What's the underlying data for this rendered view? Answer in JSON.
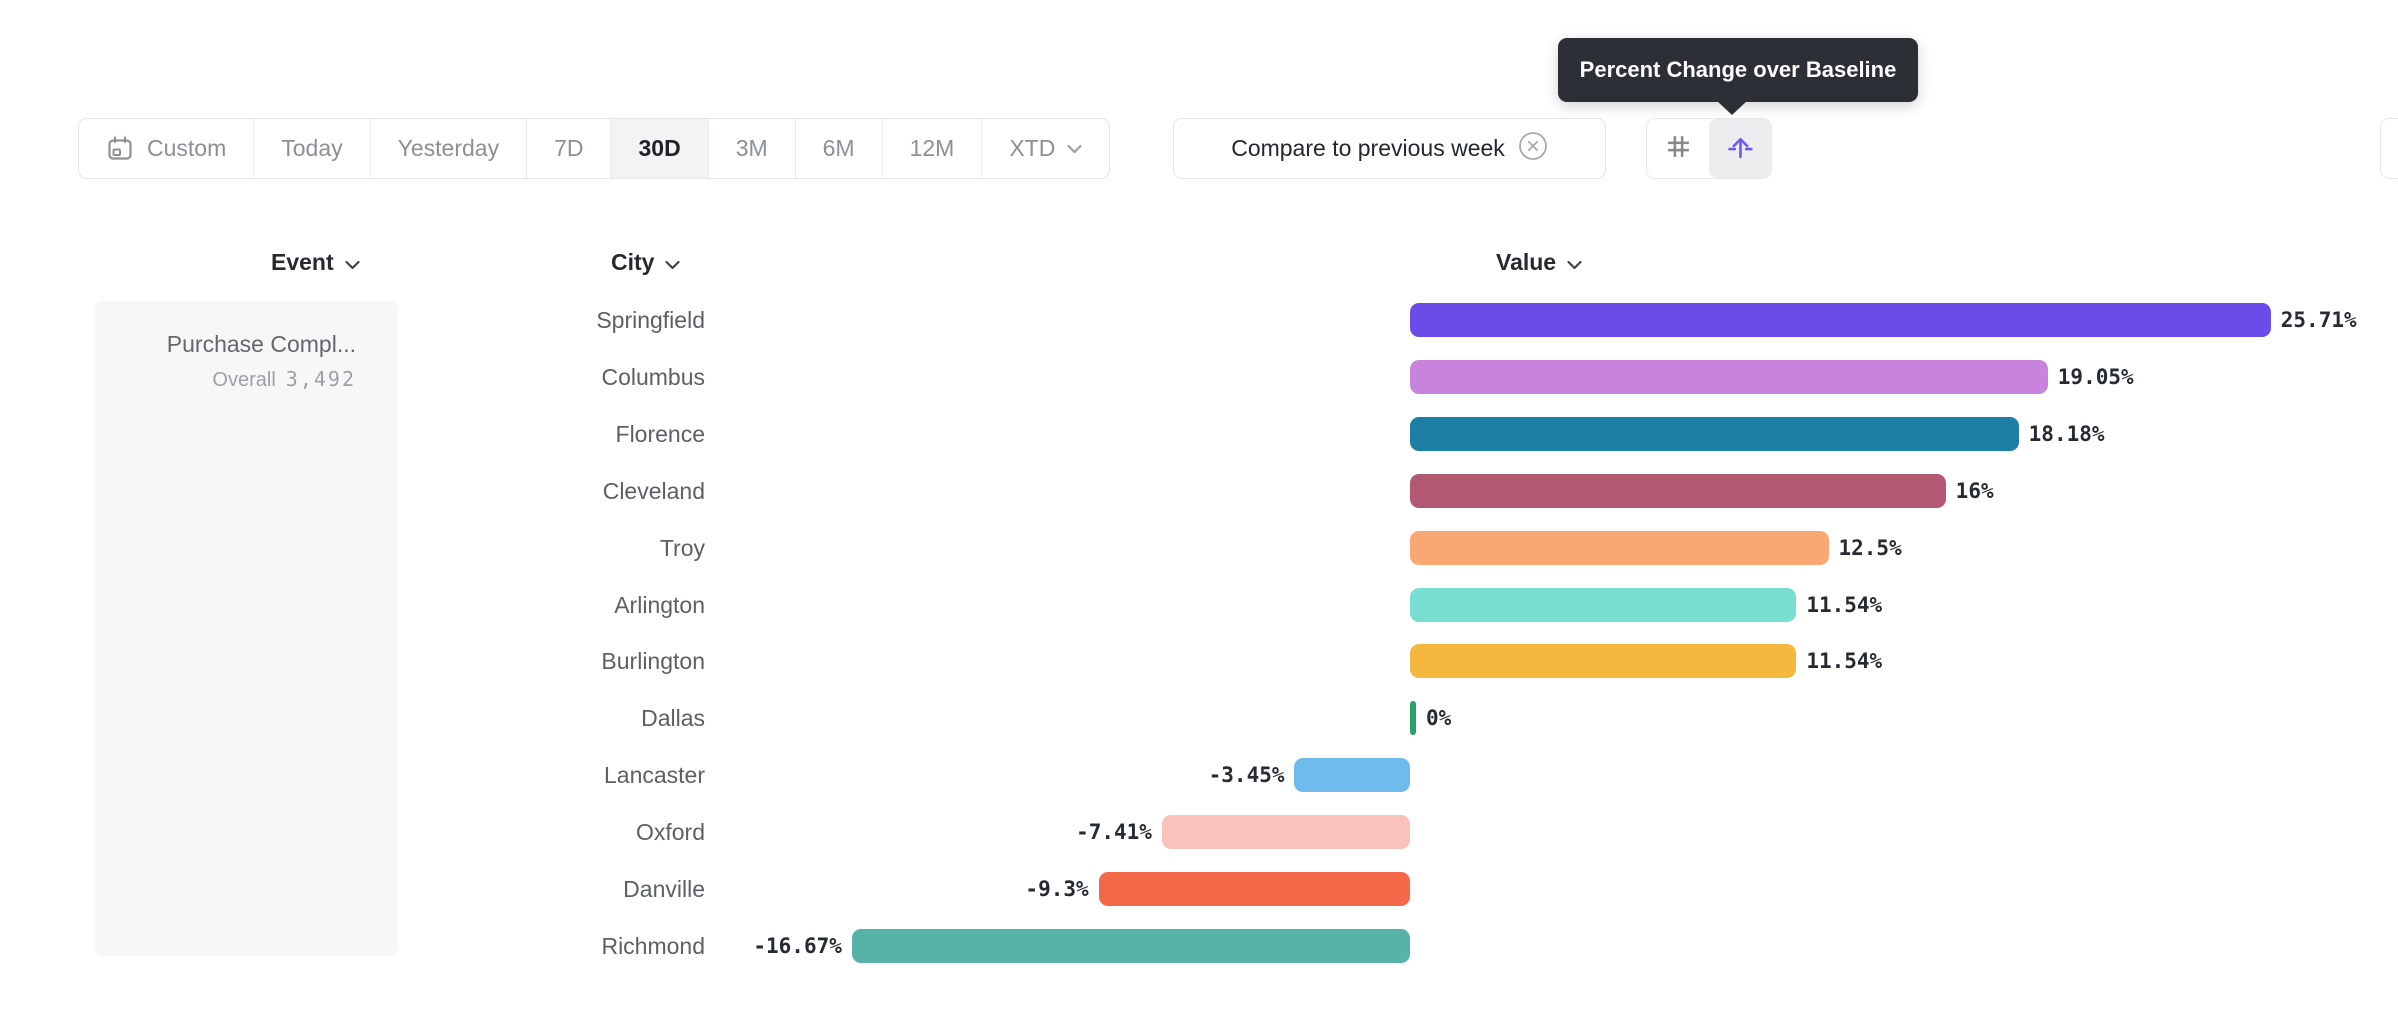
{
  "tooltip": {
    "text": "Percent Change over Baseline"
  },
  "toolbar": {
    "ranges": [
      {
        "label": "Custom",
        "selected": false,
        "icon": "calendar-icon"
      },
      {
        "label": "Today",
        "selected": false
      },
      {
        "label": "Yesterday",
        "selected": false
      },
      {
        "label": "7D",
        "selected": false
      },
      {
        "label": "30D",
        "selected": true
      },
      {
        "label": "3M",
        "selected": false
      },
      {
        "label": "6M",
        "selected": false
      },
      {
        "label": "12M",
        "selected": false
      },
      {
        "label": "XTD",
        "selected": false,
        "has_dropdown": true
      }
    ],
    "compare": {
      "label": "Compare to previous week",
      "icon": "close-circle-icon"
    },
    "view_toggle": [
      {
        "icon": "grid-icon",
        "selected": false
      },
      {
        "icon": "baseline-arrow-icon",
        "selected": true
      }
    ]
  },
  "columns": {
    "event": "Event",
    "city": "City",
    "value": "Value"
  },
  "event_panel": {
    "title": "Purchase Compl...",
    "overall_label": "Overall",
    "overall_value": "3,492"
  },
  "chart_data": {
    "type": "bar",
    "orientation": "horizontal",
    "title": "Percent Change over Baseline",
    "group_by": "City",
    "categories": [
      "Springfield",
      "Columbus",
      "Florence",
      "Cleveland",
      "Troy",
      "Arlington",
      "Burlington",
      "Dallas",
      "Lancaster",
      "Oxford",
      "Danville",
      "Richmond"
    ],
    "values": [
      25.71,
      19.05,
      18.18,
      16,
      12.5,
      11.54,
      11.54,
      0,
      -3.45,
      -7.41,
      -9.3,
      -16.67
    ],
    "display_labels": [
      "25.71%",
      "19.05%",
      "18.18%",
      "16%",
      "12.5%",
      "11.54%",
      "11.54%",
      "0%",
      "-3.45%",
      "-7.41%",
      "-9.3%",
      "-16.67%"
    ],
    "bar_colors": [
      "#6A4DE8",
      "#C884DC",
      "#1D7FA6",
      "#B25873",
      "#F9A873",
      "#79DED2",
      "#F4B83F",
      "#2BA169",
      "#70BBEE",
      "#F9C2BA",
      "#F4684A",
      "#57B3A7"
    ],
    "value_suffix": "%",
    "xlim": [
      -20,
      30
    ],
    "grid": false,
    "legend": "none"
  },
  "colors": {
    "accent_purple": "#6A5BE8",
    "tooltip_bg": "#2C2F36",
    "selected_segment_bg": "#F3F3F4",
    "panel_bg": "#F7F7F8",
    "zero_tick_green": "#2BA169"
  }
}
